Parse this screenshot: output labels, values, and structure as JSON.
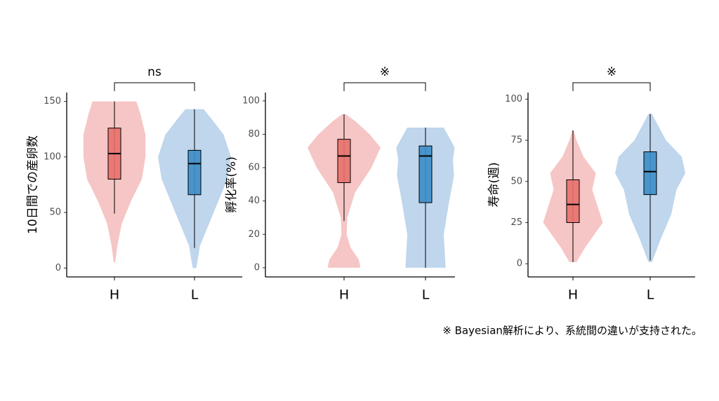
{
  "chart_data": [
    {
      "type": "violin",
      "ylabel": "10日間での産卵数",
      "annotation": "ns",
      "categories": [
        "H",
        "L"
      ],
      "ylim": [
        -8,
        158
      ],
      "yticks": [
        0,
        50,
        100,
        150
      ],
      "groups": [
        {
          "color": "#e8706c",
          "violin_color": "#f5c6c5",
          "min": 49,
          "q1": 80,
          "median": 103,
          "q3": 126,
          "max": 150,
          "violin_y": [
            5,
            20,
            40,
            60,
            80,
            100,
            120,
            140,
            150
          ],
          "violin_width": [
            0.02,
            0.08,
            0.2,
            0.45,
            0.75,
            0.85,
            0.85,
            0.7,
            0.6
          ]
        },
        {
          "color": "#3c8dc8",
          "violin_color": "#bfd6ec",
          "min": 18,
          "q1": 66,
          "median": 94,
          "q3": 106,
          "max": 143,
          "violin_y": [
            0,
            20,
            40,
            60,
            80,
            100,
            120,
            135,
            143
          ],
          "violin_width": [
            0.05,
            0.15,
            0.4,
            0.65,
            0.9,
            1.0,
            0.8,
            0.45,
            0.25
          ]
        }
      ]
    },
    {
      "type": "violin",
      "ylabel": "孵化率(%)",
      "annotation": "※",
      "categories": [
        "H",
        "L"
      ],
      "ylim": [
        -5.5,
        105
      ],
      "yticks": [
        0,
        20,
        40,
        60,
        80,
        100
      ],
      "groups": [
        {
          "color": "#e8706c",
          "violin_color": "#f5c6c5",
          "min": 28,
          "q1": 51,
          "median": 67,
          "q3": 77,
          "max": 92,
          "violin_y": [
            0,
            5,
            12,
            20,
            30,
            45,
            60,
            72,
            80,
            88,
            92
          ],
          "violin_width": [
            0.45,
            0.4,
            0.18,
            0.07,
            0.09,
            0.3,
            0.75,
            1.0,
            0.7,
            0.3,
            0.05
          ]
        },
        {
          "color": "#3c8dc8",
          "violin_color": "#bfd6ec",
          "min": 0,
          "q1": 39,
          "median": 67,
          "q3": 73,
          "max": 84,
          "violin_y": [
            0,
            20,
            40,
            55,
            65,
            72,
            80,
            84
          ],
          "violin_width": [
            0.55,
            0.5,
            0.65,
            0.78,
            0.75,
            0.8,
            0.6,
            0.5
          ]
        }
      ]
    },
    {
      "type": "violin",
      "ylabel": "寿命(週)",
      "annotation": "※",
      "categories": [
        "H",
        "L"
      ],
      "ylim": [
        -8,
        104
      ],
      "yticks": [
        0,
        25,
        50,
        75,
        100
      ],
      "groups": [
        {
          "color": "#e8706c",
          "violin_color": "#f5c6c5",
          "min": 1,
          "q1": 25,
          "median": 36,
          "q3": 51,
          "max": 81,
          "violin_y": [
            1,
            10,
            25,
            35,
            45,
            55,
            65,
            75,
            81
          ],
          "violin_width": [
            0.1,
            0.35,
            0.85,
            0.7,
            0.55,
            0.65,
            0.3,
            0.1,
            0.02
          ]
        },
        {
          "color": "#3c8dc8",
          "violin_color": "#bfd6ec",
          "min": 2,
          "q1": 42,
          "median": 56,
          "q3": 68,
          "max": 91,
          "violin_y": [
            1,
            15,
            30,
            45,
            55,
            65,
            75,
            85,
            91
          ],
          "violin_width": [
            0.05,
            0.3,
            0.6,
            0.75,
            1.0,
            0.9,
            0.45,
            0.2,
            0.05
          ]
        }
      ]
    }
  ],
  "footnote": "※ Bayesian解析により、系統間の違いが支持された。"
}
